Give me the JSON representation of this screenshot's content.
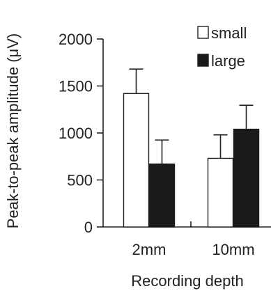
{
  "chart_data": {
    "type": "bar",
    "title": "",
    "xlabel": "Recording depth",
    "ylabel": "Peak-to-peak amplitude (μV)",
    "categories": [
      "2mm",
      "10mm"
    ],
    "ylim": [
      0,
      2000
    ],
    "yticks": [
      0,
      500,
      1000,
      1500,
      2000
    ],
    "yticklabels": [
      "0",
      "500",
      "1000",
      "1500",
      "2000"
    ],
    "grid": false,
    "legend_position": "top-right",
    "series": [
      {
        "name": "small",
        "values": [
          1420,
          730
        ],
        "errors": [
          260,
          250
        ],
        "fill": "#ffffff",
        "stroke": "#222222"
      },
      {
        "name": "large",
        "values": [
          670,
          1040
        ],
        "errors": [
          255,
          255
        ],
        "fill": "#1a1a1a",
        "stroke": "#1a1a1a"
      }
    ]
  }
}
